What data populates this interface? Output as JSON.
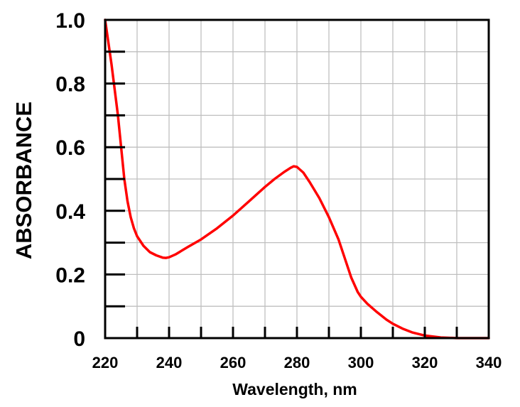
{
  "chart_data": {
    "type": "line",
    "title": "",
    "xlabel": "Wavelength, nm",
    "ylabel": "ABSORBANCE",
    "xlim": [
      220,
      340
    ],
    "ylim": [
      0,
      1.0
    ],
    "x_ticks": [
      220,
      240,
      260,
      280,
      300,
      320,
      340
    ],
    "x_tick_labels": [
      "220",
      "240",
      "260",
      "280",
      "300",
      "320",
      "340"
    ],
    "y_ticks": [
      0,
      0.2,
      0.4,
      0.6,
      0.8,
      1.0
    ],
    "y_tick_labels": [
      "0",
      "0.2",
      "0.4",
      "0.6",
      "0.8",
      "1.0"
    ],
    "grid": true,
    "legend": "none",
    "series": [
      {
        "name": "Absorbance",
        "color": "#ff0000",
        "x": [
          220,
          222,
          224,
          225,
          226,
          227,
          228,
          229,
          230,
          232,
          234,
          236,
          238,
          239,
          240,
          242,
          244,
          246,
          250,
          255,
          260,
          265,
          270,
          273,
          276,
          278,
          279,
          280,
          282,
          284,
          287,
          290,
          293,
          295,
          297,
          299,
          300,
          302,
          305,
          308,
          310,
          313,
          316,
          320,
          325,
          330,
          335,
          340
        ],
        "y": [
          1.0,
          0.86,
          0.7,
          0.6,
          0.5,
          0.43,
          0.38,
          0.345,
          0.32,
          0.29,
          0.27,
          0.26,
          0.253,
          0.252,
          0.254,
          0.263,
          0.275,
          0.287,
          0.31,
          0.345,
          0.385,
          0.43,
          0.475,
          0.5,
          0.522,
          0.535,
          0.54,
          0.538,
          0.52,
          0.49,
          0.44,
          0.38,
          0.31,
          0.25,
          0.19,
          0.145,
          0.13,
          0.108,
          0.082,
          0.058,
          0.045,
          0.03,
          0.018,
          0.008,
          0.002,
          0.0,
          0.0,
          0.0
        ]
      }
    ]
  }
}
